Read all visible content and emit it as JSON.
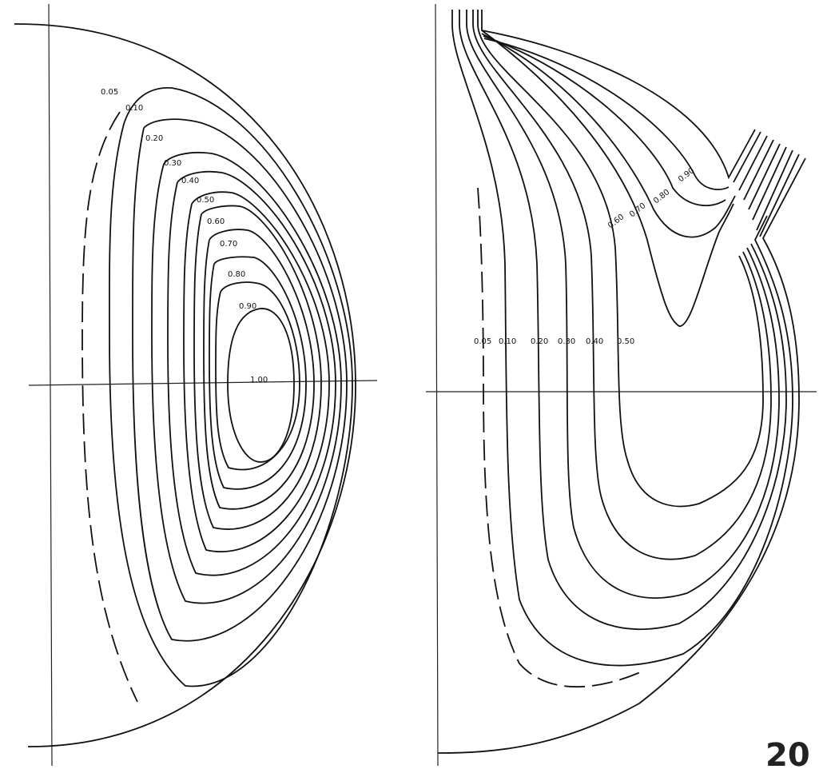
{
  "left_plot": {
    "labels": [
      "0.05",
      "0.10",
      "0.20",
      "0.30",
      "0.40",
      "0.50",
      "0.60",
      "0.70",
      "0.80",
      "0.90",
      "1.00"
    ]
  },
  "right_plot": {
    "row_labels": [
      "0.05",
      "0.10",
      "0.20",
      "0.30",
      "0.40",
      "0.50"
    ],
    "upper_labels": [
      "0.60",
      "0.70",
      "0.80",
      "0.90"
    ]
  },
  "page_number": "20"
}
